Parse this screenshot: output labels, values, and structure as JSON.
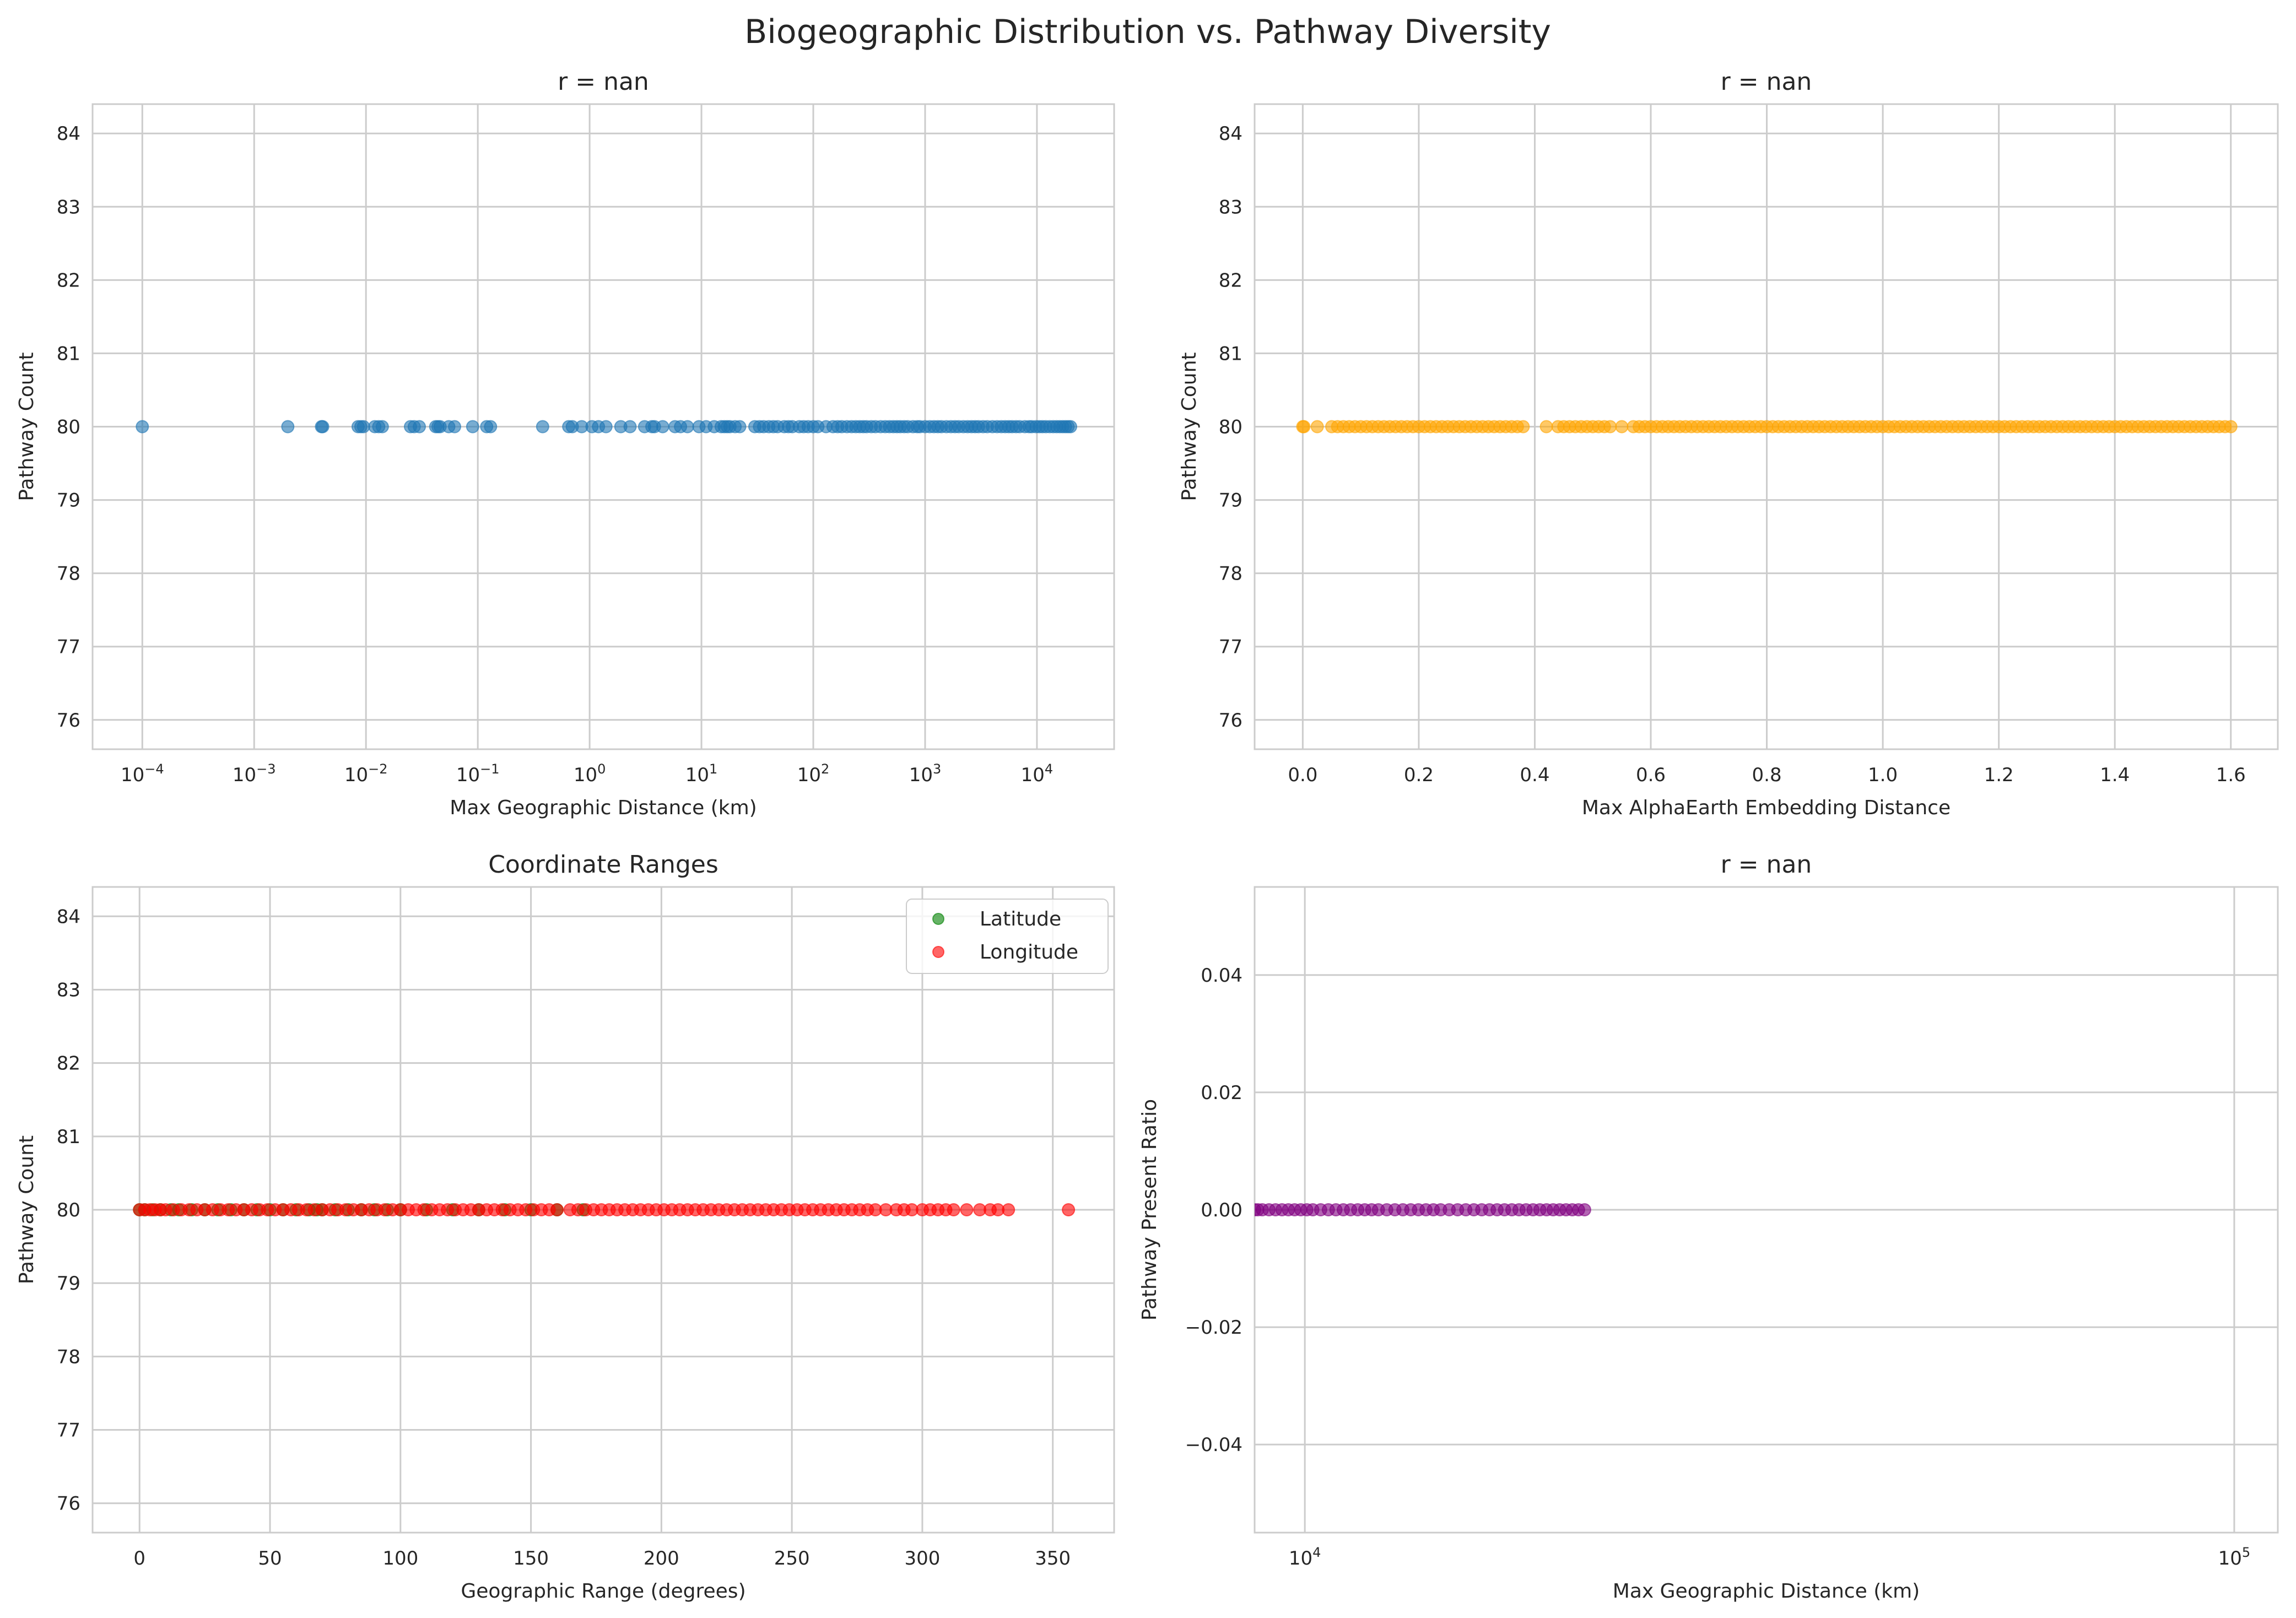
{
  "title": "Biogeographic Distribution vs. Pathway Diversity",
  "chart_data": [
    {
      "type": "scatter",
      "title": "r = nan",
      "xlabel": "Max Geographic Distance (km)",
      "ylabel": "Pathway Count",
      "xscale": "log",
      "xlim": [
        3.59e-05,
        49000
      ],
      "ylim": [
        75.6,
        84.4
      ],
      "xticks": [
        0.0001,
        0.001,
        0.01,
        0.1,
        1,
        10,
        100,
        1000,
        10000
      ],
      "xtick_labels": [
        {
          "base": "10",
          "exp": "−4"
        },
        {
          "base": "10",
          "exp": "−3"
        },
        {
          "base": "10",
          "exp": "−2"
        },
        {
          "base": "10",
          "exp": "−1"
        },
        {
          "base": "10",
          "exp": "0"
        },
        {
          "base": "10",
          "exp": "1"
        },
        {
          "base": "10",
          "exp": "2"
        },
        {
          "base": "10",
          "exp": "3"
        },
        {
          "base": "10",
          "exp": "4"
        }
      ],
      "yticks": [
        76,
        77,
        78,
        79,
        80,
        81,
        82,
        83,
        84
      ],
      "ytick_labels": [
        "76",
        "77",
        "78",
        "79",
        "80",
        "81",
        "82",
        "83",
        "84"
      ],
      "grid": true,
      "series": [
        {
          "color": "#1f77b4",
          "alpha": 0.6,
          "y": 80,
          "x": [
            0.0001,
            0.002,
            0.004,
            0.0041,
            0.0085,
            0.009,
            0.0095,
            0.012,
            0.013,
            0.014,
            0.025,
            0.027,
            0.03,
            0.042,
            0.044,
            0.046,
            0.055,
            0.062,
            0.09,
            0.12,
            0.13,
            0.38,
            0.65,
            0.7,
            0.85,
            1.05,
            1.2,
            1.4,
            1.9,
            2.3,
            3.1,
            3.6,
            3.8,
            4.5,
            5.8,
            6.5,
            7.5,
            9.5,
            11,
            13,
            15,
            16,
            17,
            18,
            20,
            22,
            30,
            33,
            36,
            40,
            44,
            48,
            55,
            60,
            65,
            75,
            82,
            90,
            100,
            110,
            130,
            150,
            165,
            180,
            200,
            220,
            240,
            260,
            280,
            300,
            330,
            360,
            400,
            440,
            480,
            520,
            560,
            600,
            650,
            700,
            780,
            850,
            900,
            1000,
            1100,
            1200,
            1300,
            1400,
            1550,
            1700,
            1850,
            2000,
            2200,
            2400,
            2600,
            2800,
            3000,
            3300,
            3600,
            4000,
            4400,
            4800,
            5200,
            5600,
            6000,
            6500,
            7000,
            7800,
            8500,
            9000,
            9800,
            10500,
            11200,
            12000,
            13000,
            14000,
            15000,
            16000,
            17000,
            18000,
            19000,
            20000
          ]
        }
      ]
    },
    {
      "type": "scatter",
      "title": "r = nan",
      "xlabel": "Max AlphaEarth Embedding Distance",
      "ylabel": "Pathway Count",
      "xscale": "linear",
      "xlim": [
        -0.083,
        1.681
      ],
      "ylim": [
        75.6,
        84.4
      ],
      "xticks": [
        0.0,
        0.2,
        0.4,
        0.6,
        0.8,
        1.0,
        1.2,
        1.4,
        1.6
      ],
      "xtick_labels": [
        "0.0",
        "0.2",
        "0.4",
        "0.6",
        "0.8",
        "1.0",
        "1.2",
        "1.4",
        "1.6"
      ],
      "yticks": [
        76,
        77,
        78,
        79,
        80,
        81,
        82,
        83,
        84
      ],
      "ytick_labels": [
        "76",
        "77",
        "78",
        "79",
        "80",
        "81",
        "82",
        "83",
        "84"
      ],
      "grid": true,
      "series": [
        {
          "color": "#ffa500",
          "alpha": 0.6,
          "y": 80,
          "x": [
            0.0,
            0.002,
            0.025,
            0.05,
            0.06,
            0.07,
            0.08,
            0.09,
            0.1,
            0.11,
            0.12,
            0.13,
            0.14,
            0.15,
            0.16,
            0.17,
            0.18,
            0.19,
            0.2,
            0.21,
            0.22,
            0.23,
            0.24,
            0.25,
            0.26,
            0.27,
            0.28,
            0.29,
            0.3,
            0.31,
            0.32,
            0.33,
            0.34,
            0.35,
            0.36,
            0.37,
            0.38,
            0.42,
            0.44,
            0.45,
            0.46,
            0.47,
            0.48,
            0.49,
            0.5,
            0.51,
            0.52,
            0.53,
            0.55,
            0.57,
            0.58,
            0.59,
            0.6,
            0.61,
            0.62,
            0.63,
            0.64,
            0.65,
            0.66,
            0.67,
            0.68,
            0.69,
            0.7,
            0.71,
            0.72,
            0.73,
            0.74,
            0.75,
            0.76,
            0.77,
            0.78,
            0.79,
            0.8,
            0.81,
            0.82,
            0.83,
            0.84,
            0.85,
            0.86,
            0.87,
            0.88,
            0.89,
            0.9,
            0.91,
            0.92,
            0.93,
            0.94,
            0.95,
            0.96,
            0.97,
            0.98,
            0.99,
            1.0,
            1.01,
            1.02,
            1.03,
            1.04,
            1.05,
            1.06,
            1.07,
            1.08,
            1.09,
            1.1,
            1.11,
            1.12,
            1.13,
            1.14,
            1.15,
            1.16,
            1.17,
            1.18,
            1.19,
            1.2,
            1.21,
            1.22,
            1.23,
            1.24,
            1.25,
            1.26,
            1.27,
            1.28,
            1.29,
            1.3,
            1.31,
            1.32,
            1.33,
            1.34,
            1.35,
            1.36,
            1.37,
            1.38,
            1.39,
            1.4,
            1.41,
            1.42,
            1.43,
            1.44,
            1.45,
            1.46,
            1.47,
            1.48,
            1.49,
            1.5,
            1.51,
            1.52,
            1.53,
            1.54,
            1.55,
            1.56,
            1.57,
            1.58,
            1.59,
            1.6
          ]
        }
      ]
    },
    {
      "type": "scatter",
      "title": "Coordinate Ranges",
      "xlabel": "Geographic Range (degrees)",
      "ylabel": "Pathway Count",
      "xscale": "linear",
      "xlim": [
        -18,
        373.5
      ],
      "ylim": [
        75.6,
        84.4
      ],
      "xticks": [
        0,
        50,
        100,
        150,
        200,
        250,
        300,
        350
      ],
      "xtick_labels": [
        "0",
        "50",
        "100",
        "150",
        "200",
        "250",
        "300",
        "350"
      ],
      "yticks": [
        76,
        77,
        78,
        79,
        80,
        81,
        82,
        83,
        84
      ],
      "ytick_labels": [
        "76",
        "77",
        "78",
        "79",
        "80",
        "81",
        "82",
        "83",
        "84"
      ],
      "grid": true,
      "legend": "top-right",
      "series": [
        {
          "name": "Latitude",
          "color": "#008000",
          "alpha": 0.6,
          "y": 80,
          "x": [
            0,
            2,
            5,
            8,
            12,
            15,
            20,
            25,
            30,
            35,
            40,
            45,
            50,
            55,
            60,
            65,
            68,
            70,
            75,
            80,
            85,
            90,
            95,
            100,
            110,
            120,
            130,
            140,
            150,
            160,
            170
          ]
        },
        {
          "name": "Longitude",
          "color": "#ff0000",
          "alpha": 0.6,
          "y": 80,
          "x": [
            0,
            2,
            4,
            6,
            8,
            10,
            13,
            16,
            19,
            22,
            25,
            28,
            31,
            34,
            37,
            40,
            43,
            46,
            49,
            52,
            55,
            58,
            61,
            64,
            67,
            70,
            73,
            76,
            79,
            82,
            85,
            88,
            91,
            94,
            97,
            100,
            103,
            106,
            109,
            112,
            115,
            118,
            121,
            124,
            127,
            130,
            133,
            136,
            139,
            142,
            145,
            148,
            151,
            154,
            157,
            160,
            165,
            168,
            171,
            174,
            177,
            180,
            183,
            186,
            189,
            192,
            195,
            198,
            201,
            204,
            207,
            210,
            213,
            216,
            219,
            222,
            225,
            228,
            231,
            234,
            237,
            240,
            243,
            246,
            249,
            252,
            255,
            258,
            261,
            264,
            267,
            270,
            273,
            276,
            279,
            282,
            286,
            290,
            293,
            296,
            300,
            303,
            306,
            309,
            312,
            317,
            322,
            326,
            329,
            333,
            356
          ]
        }
      ]
    },
    {
      "type": "scatter",
      "title": "r = nan",
      "xlabel": "Max Geographic Distance (km)",
      "ylabel": "Pathway Present Ratio",
      "xscale": "log",
      "xlim": [
        8830,
        111400
      ],
      "ylim": [
        -0.055,
        0.055
      ],
      "xticks": [
        10000,
        100000
      ],
      "xtick_labels": [
        {
          "base": "10",
          "exp": "4"
        },
        {
          "base": "10",
          "exp": "5"
        }
      ],
      "yticks": [
        -0.04,
        -0.02,
        0.0,
        0.02,
        0.04
      ],
      "ytick_labels": [
        "−0.04",
        "−0.02",
        "0.00",
        "0.02",
        "0.04"
      ],
      "grid": true,
      "series": [
        {
          "color": "#800080",
          "alpha": 0.6,
          "y": 0.0,
          "x": [
            8830,
            8900,
            9000,
            9150,
            9300,
            9450,
            9600,
            9750,
            9900,
            10050,
            10200,
            10400,
            10600,
            10800,
            11000,
            11200,
            11400,
            11600,
            11800,
            12000,
            12250,
            12500,
            12750,
            13000,
            13250,
            13500,
            13750,
            14000,
            14300,
            14600,
            14900,
            15200,
            15500,
            15800,
            16100,
            16400,
            16700,
            17000,
            17300,
            17600,
            17900,
            18200,
            18500,
            18800,
            19100,
            19400,
            19700,
            20000
          ]
        }
      ]
    }
  ]
}
